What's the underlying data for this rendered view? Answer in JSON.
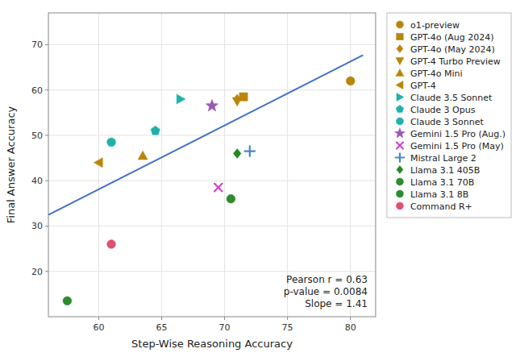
{
  "chart_data": {
    "type": "scatter",
    "xlabel": "Step-Wise Reasoning Accuracy",
    "ylabel": "Final Answer Accuracy",
    "xlim": [
      56,
      82
    ],
    "ylim": [
      10,
      77
    ],
    "xticks": [
      60,
      65,
      70,
      75,
      80
    ],
    "yticks": [
      20,
      30,
      40,
      50,
      60,
      70
    ],
    "grid": true,
    "legend": "right",
    "annotations": [
      "Pearson r = 0.63",
      "p-value = 0.0084",
      "Slope = 1.41"
    ],
    "series": [
      {
        "type": "line",
        "color": "#4472c4",
        "line_style": "solid",
        "x": [
          56,
          81
        ],
        "values": [
          32.46,
          67.71
        ]
      },
      {
        "name": "o1-preview",
        "color": "#b8860b",
        "marker": "circle",
        "x": [
          80.0
        ],
        "values": [
          62.0
        ]
      },
      {
        "name": "GPT-4o (Aug 2024)",
        "color": "#b8860b",
        "marker": "square",
        "x": [
          71.5
        ],
        "values": [
          58.5
        ]
      },
      {
        "name": "GPT-4o (May 2024)",
        "color": "#b8860b",
        "marker": "diamond",
        "x": [
          71.0
        ],
        "values": [
          58.0
        ]
      },
      {
        "name": "GPT-4 Turbo Preview",
        "color": "#b8860b",
        "marker": "triangle-down",
        "x": [
          71.0
        ],
        "values": [
          57.5
        ]
      },
      {
        "name": "GPT-4o Mini",
        "color": "#b8860b",
        "marker": "triangle-up",
        "x": [
          63.5
        ],
        "values": [
          45.5
        ]
      },
      {
        "name": "GPT-4",
        "color": "#b8860b",
        "marker": "triangle-left",
        "x": [
          60.0
        ],
        "values": [
          44.0
        ]
      },
      {
        "name": "Claude 3.5 Sonnet",
        "color": "#20b2aa",
        "marker": "triangle-right",
        "x": [
          66.5
        ],
        "values": [
          58.0
        ]
      },
      {
        "name": "Claude 3 Opus",
        "color": "#20b2aa",
        "marker": "pentagon",
        "x": [
          64.5
        ],
        "values": [
          51.0
        ]
      },
      {
        "name": "Claude 3 Sonnet",
        "color": "#20b2aa",
        "marker": "circle",
        "x": [
          61.0
        ],
        "values": [
          48.5
        ]
      },
      {
        "name": "Gemini 1.5 Pro (Aug.)",
        "color": "#9b59b6",
        "marker": "star",
        "x": [
          69.0
        ],
        "values": [
          56.5
        ]
      },
      {
        "name": "Gemini 1.5 Pro (May)",
        "color": "#cc44cc",
        "marker": "x",
        "x": [
          69.5
        ],
        "values": [
          38.5
        ]
      },
      {
        "name": "Mistral Large 2",
        "color": "#4488cc",
        "marker": "plus",
        "x": [
          72.0
        ],
        "values": [
          46.5
        ]
      },
      {
        "name": "Llama 3.1 405B",
        "color": "#228b22",
        "marker": "diamond",
        "x": [
          71.0
        ],
        "values": [
          46.0
        ]
      },
      {
        "name": "Llama 3.1 70B",
        "color": "#2e8b2e",
        "marker": "circle",
        "x": [
          70.5
        ],
        "values": [
          36.0
        ]
      },
      {
        "name": "Llama 3.1 8B",
        "color": "#2e8b2e",
        "marker": "circle",
        "x": [
          57.5
        ],
        "values": [
          13.5
        ]
      },
      {
        "name": "Command R+",
        "color": "#e05070",
        "marker": "circle",
        "x": [
          61.0
        ],
        "values": [
          26.0
        ]
      }
    ]
  }
}
